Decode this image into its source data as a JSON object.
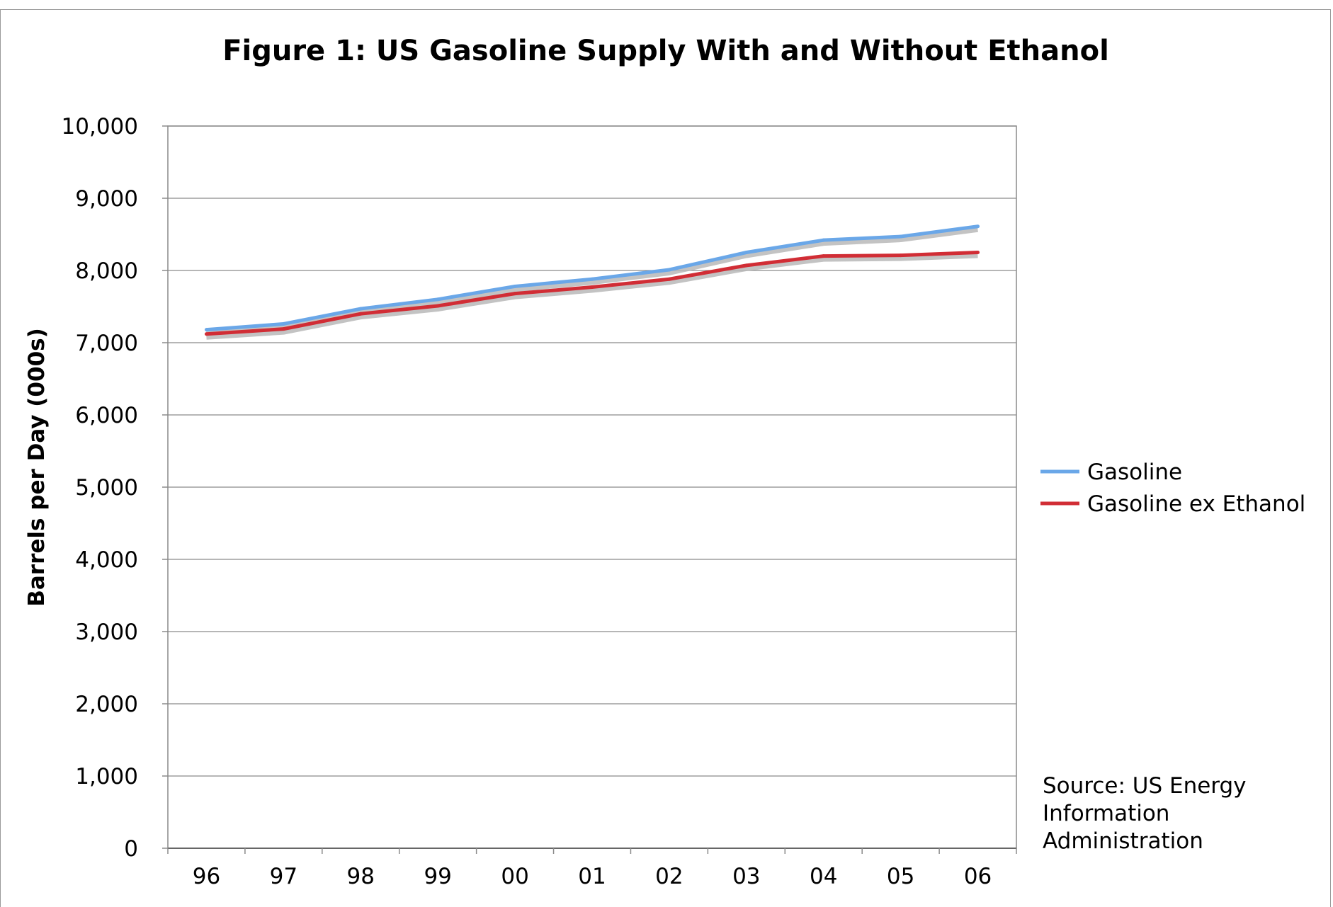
{
  "chart_data": {
    "type": "line",
    "title": "Figure 1: US Gasoline Supply With and Without Ethanol",
    "xlabel": "",
    "ylabel": "Barrels per Day (000s)",
    "categories": [
      "96",
      "97",
      "98",
      "99",
      "00",
      "01",
      "02",
      "03",
      "04",
      "05",
      "06"
    ],
    "ylim": [
      0,
      10000
    ],
    "yticks": [
      "0",
      "1,000",
      "2,000",
      "3,000",
      "4,000",
      "5,000",
      "6,000",
      "7,000",
      "8,000",
      "9,000",
      "10,000"
    ],
    "grid": true,
    "legend_position": "right",
    "series": [
      {
        "name": "Gasoline",
        "color": "#6aa7e8",
        "values": [
          7180,
          7260,
          7470,
          7600,
          7780,
          7880,
          8010,
          8250,
          8420,
          8470,
          8610
        ]
      },
      {
        "name": "Gasoline ex Ethanol",
        "color": "#d12d35",
        "values": [
          7120,
          7190,
          7400,
          7510,
          7680,
          7770,
          7880,
          8070,
          8200,
          8210,
          8250
        ]
      }
    ],
    "annotation": "Source: US Energy Information Administration",
    "annotation_lines": [
      "Source: US Energy",
      "Information",
      "Administration"
    ]
  }
}
